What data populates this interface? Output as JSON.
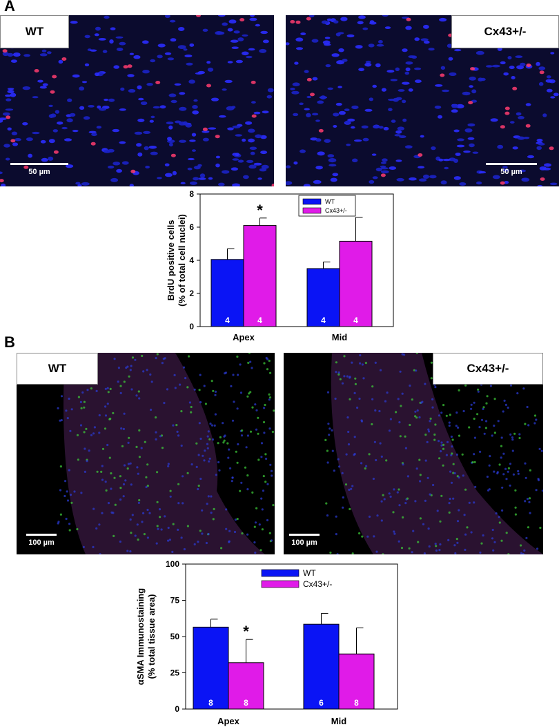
{
  "panels": {
    "a": {
      "letter": "A",
      "images": [
        {
          "label": "WT",
          "scale_label": "50 µm"
        },
        {
          "label": "Cx43+/-",
          "scale_label": "50 µm"
        }
      ]
    },
    "b": {
      "letter": "B",
      "images": [
        {
          "label": "WT",
          "scale_label": "100 µm"
        },
        {
          "label": "Cx43+/-",
          "scale_label": "100 µm"
        }
      ]
    }
  },
  "colors": {
    "wt": "#0a14f5",
    "cx43": "#e01be8"
  },
  "chart_data": [
    {
      "type": "bar",
      "categories": [
        "Apex",
        "Mid"
      ],
      "ylabel": [
        "BrdU positive cells",
        "(% of total cell nuclei)"
      ],
      "ylim": [
        0,
        8
      ],
      "yticks": [
        0,
        2,
        4,
        6,
        8
      ],
      "legend": "top-center",
      "series": [
        {
          "name": "WT",
          "values": [
            4.05,
            3.5
          ],
          "errors": [
            0.65,
            0.4
          ],
          "n": [
            "4",
            "4"
          ]
        },
        {
          "name": "Cx43+/-",
          "values": [
            6.1,
            5.15
          ],
          "errors": [
            0.45,
            1.45
          ],
          "n": [
            "4",
            "4"
          ]
        }
      ],
      "annotations": [
        {
          "text": "*",
          "category": "Apex",
          "series": "Cx43+/-"
        }
      ]
    },
    {
      "type": "bar",
      "categories": [
        "Apex",
        "Mid"
      ],
      "ylabel": [
        "αSMA Immunostaining",
        "(% total tissue area)"
      ],
      "ylim": [
        0,
        100
      ],
      "yticks": [
        0,
        25,
        50,
        75,
        100
      ],
      "legend": "top-center",
      "series": [
        {
          "name": "WT",
          "values": [
            56.5,
            58.5
          ],
          "errors": [
            5.5,
            7.5
          ],
          "n": [
            "8",
            "6"
          ]
        },
        {
          "name": "Cx43+/-",
          "values": [
            32,
            38
          ],
          "errors": [
            16,
            18
          ],
          "n": [
            "8",
            "8"
          ]
        }
      ],
      "annotations": [
        {
          "text": "*",
          "category": "Apex",
          "series": "Cx43+/-"
        }
      ]
    }
  ]
}
